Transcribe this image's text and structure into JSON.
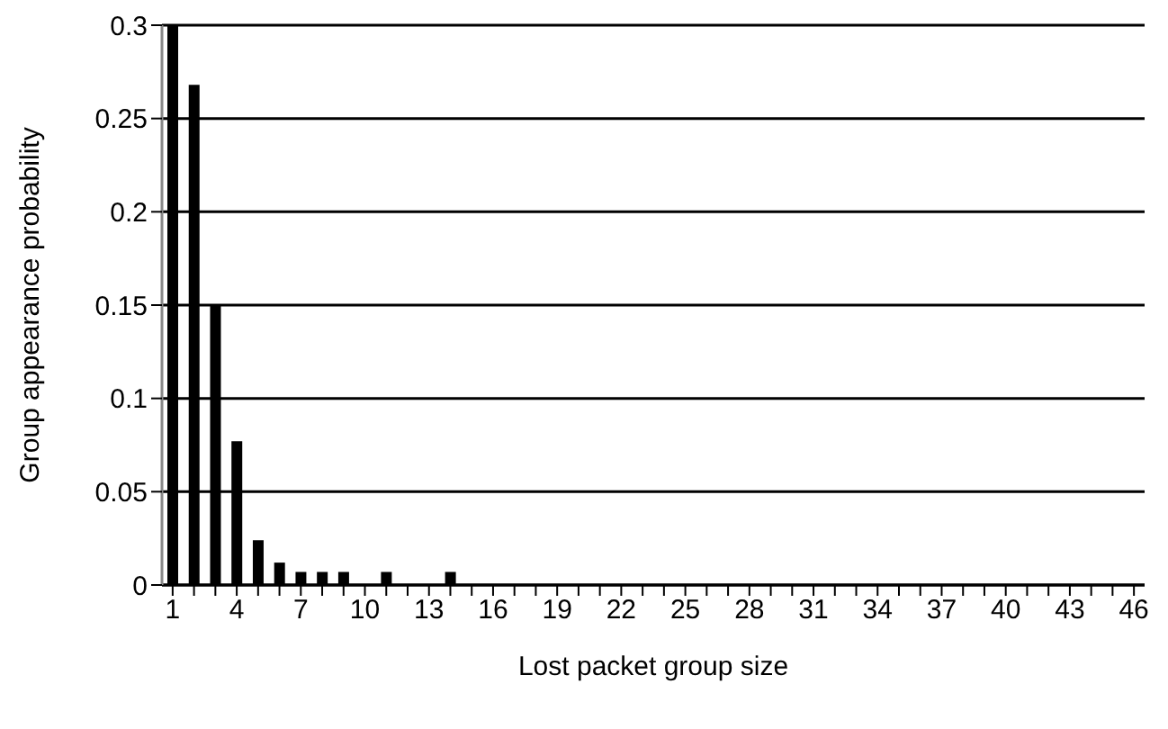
{
  "chart_data": {
    "type": "bar",
    "xlabel": "Lost packet group size",
    "ylabel": "Group appearance probability",
    "categories": [
      "1",
      null,
      null,
      "4",
      null,
      null,
      "7",
      null,
      null,
      "10",
      null,
      null,
      "13",
      null,
      null,
      "16",
      null,
      null,
      "19",
      null,
      null,
      "22",
      null,
      null,
      "25",
      null,
      null,
      "28",
      null,
      null,
      "31",
      null,
      null,
      "34",
      null,
      null,
      "37",
      null,
      null,
      "40",
      null,
      null,
      "43",
      null,
      null,
      "46"
    ],
    "values": [
      0.3,
      0.268,
      0.15,
      0.077,
      0.024,
      0.012,
      0.007,
      0.007,
      0.007,
      0,
      0.007,
      0,
      0,
      0.007,
      0,
      0,
      0,
      0,
      0,
      0,
      0,
      0,
      0,
      0,
      0,
      0,
      0,
      0,
      0,
      0,
      0,
      0,
      0,
      0,
      0,
      0,
      0,
      0,
      0,
      0,
      0,
      0,
      0,
      0,
      0,
      0
    ],
    "color": "#000000",
    "ylim": [
      0,
      0.3
    ],
    "yticks": [
      0,
      0.05,
      0.1,
      0.15,
      0.2,
      0.25,
      0.3
    ],
    "grid": "y"
  }
}
